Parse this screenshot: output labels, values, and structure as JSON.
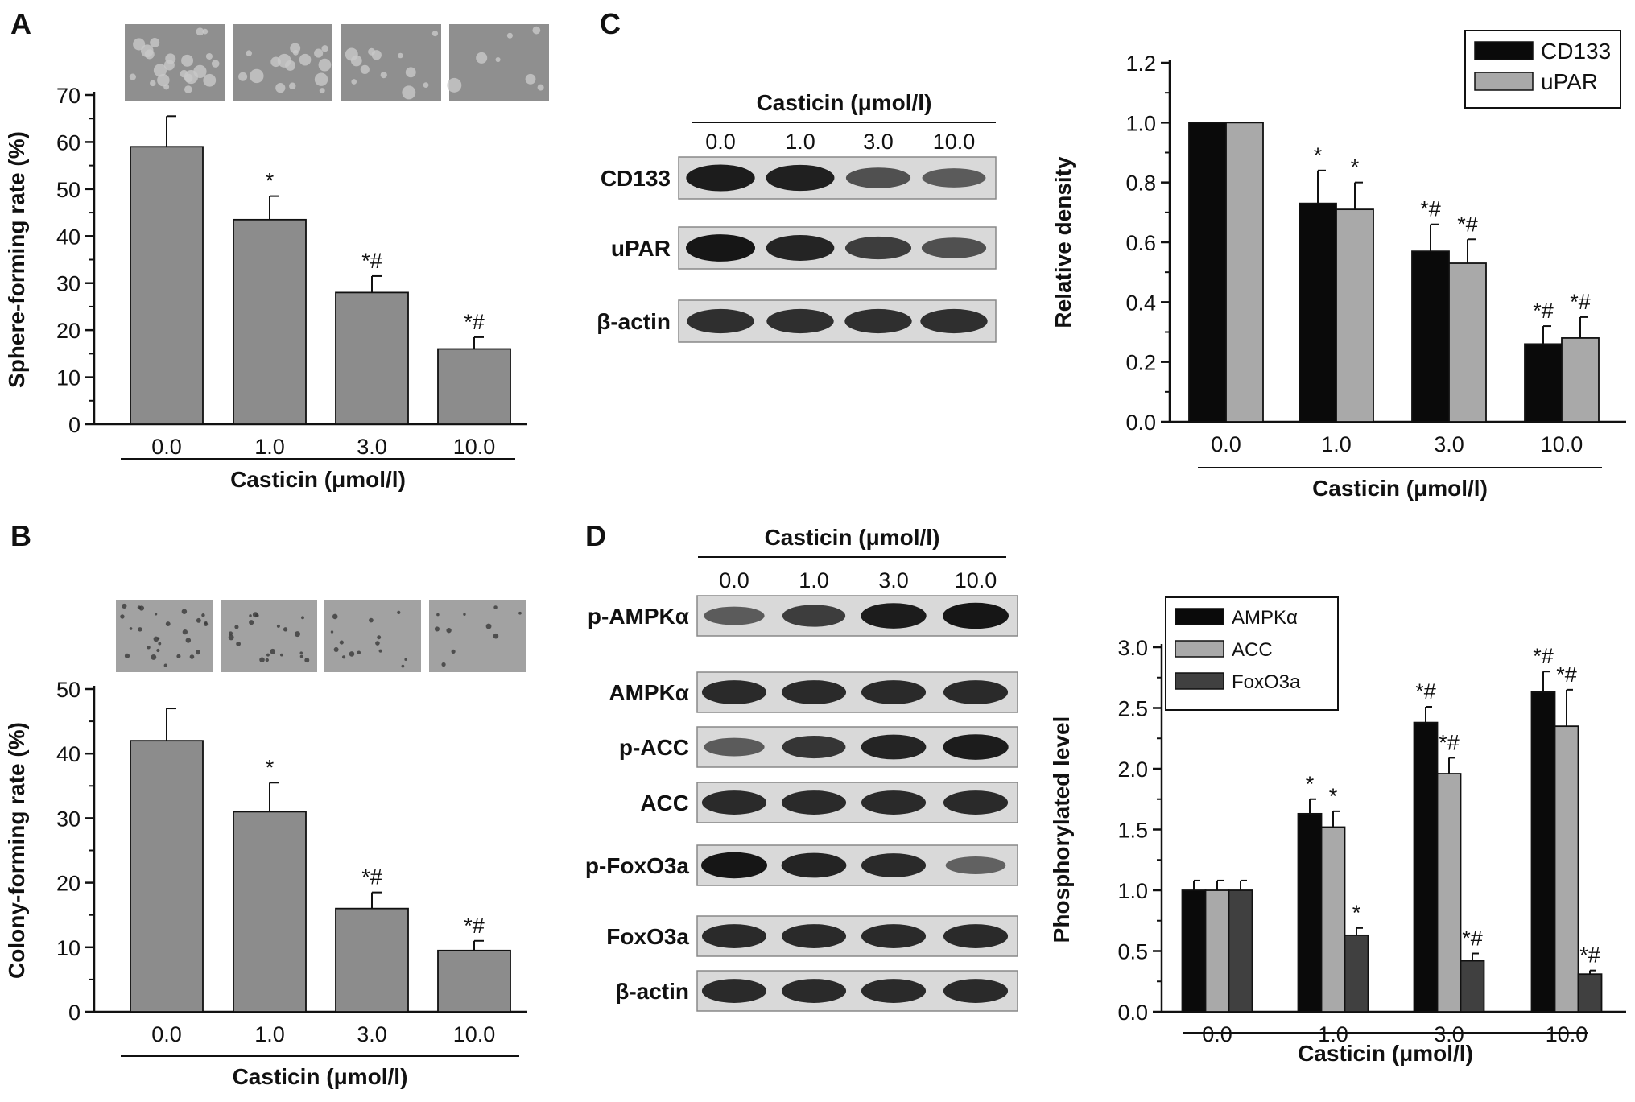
{
  "panel_letters": {
    "A": "A",
    "B": "B",
    "C": "C",
    "D": "D"
  },
  "colors": {
    "bar_single": "#8c8c8c",
    "bar_black": "#0a0a0a",
    "bar_light": "#a9a9a9",
    "bar_dark": "#404040",
    "blot_bg": "#d9d9d9",
    "band": "#161616",
    "micrograph_sphere": "#8f8f8f",
    "micrograph_colony": "#a2a2a2"
  },
  "chart_data": [
    {
      "panel": "A",
      "type": "bar",
      "categories": [
        "0.0",
        "1.0",
        "3.0",
        "10.0"
      ],
      "series": [
        {
          "values": [
            59,
            43.5,
            28,
            16
          ]
        }
      ],
      "errors": [
        6.5,
        5,
        3.5,
        2.5
      ],
      "annotations": [
        "",
        "*",
        "*#",
        "*#"
      ],
      "ylabel": "Sphere-forming rate (%)",
      "xlabel": "Casticin  (μmol/l)",
      "ylim": [
        0,
        70
      ],
      "yticks": [
        "0",
        "10",
        "20",
        "30",
        "40",
        "50",
        "60",
        "70"
      ]
    },
    {
      "panel": "B",
      "type": "bar",
      "categories": [
        "0.0",
        "1.0",
        "3.0",
        "10.0"
      ],
      "series": [
        {
          "values": [
            42,
            31,
            16,
            9.5
          ]
        }
      ],
      "errors": [
        5,
        4.5,
        2.5,
        1.5
      ],
      "annotations": [
        "",
        "*",
        "*#",
        "*#"
      ],
      "ylabel": "Colony-forming rate (%)",
      "xlabel": "Casticin  (μmol/l)",
      "ylim": [
        0,
        50
      ],
      "yticks": [
        "0",
        "10",
        "20",
        "30",
        "40",
        "50"
      ]
    },
    {
      "panel": "C",
      "type": "bar",
      "categories": [
        "0.0",
        "1.0",
        "3.0",
        "10.0"
      ],
      "series": [
        {
          "name": "CD133",
          "values": [
            1.0,
            0.73,
            0.57,
            0.26
          ],
          "errors": [
            0,
            0.11,
            0.09,
            0.06
          ],
          "annotations": [
            "",
            "*",
            "*#",
            "*#"
          ]
        },
        {
          "name": "uPAR",
          "values": [
            1.0,
            0.71,
            0.53,
            0.28
          ],
          "errors": [
            0,
            0.09,
            0.08,
            0.07
          ],
          "annotations": [
            "",
            "*",
            "*#",
            "*#"
          ]
        }
      ],
      "ylabel": "Relative density",
      "xlabel": "Casticin  (μmol/l)",
      "ylim": [
        0,
        1.2
      ],
      "yticks": [
        "0.0",
        "0.2",
        "0.4",
        "0.6",
        "0.8",
        "1.0",
        "1.2"
      ],
      "legend": "top-right"
    },
    {
      "panel": "D",
      "type": "bar",
      "categories": [
        "0.0",
        "1.0",
        "3.0",
        "10.0"
      ],
      "series": [
        {
          "name": "AMPKα",
          "values": [
            1.0,
            1.63,
            2.38,
            2.63
          ],
          "errors": [
            0.08,
            0.12,
            0.13,
            0.17
          ],
          "annotations": [
            "",
            "*",
            "*#",
            "*#"
          ]
        },
        {
          "name": "ACC",
          "values": [
            1.0,
            1.52,
            1.96,
            2.35
          ],
          "errors": [
            0.08,
            0.13,
            0.13,
            0.3
          ],
          "annotations": [
            "",
            "*",
            "*#",
            "*#"
          ]
        },
        {
          "name": "FoxO3a",
          "values": [
            1.0,
            0.63,
            0.42,
            0.31
          ],
          "errors": [
            0.08,
            0.06,
            0.06,
            0.03
          ],
          "annotations": [
            "",
            "*",
            "*#",
            "*#"
          ]
        }
      ],
      "ylabel": "Phosphorylated level",
      "xlabel": "Casticin  (μmol/l)",
      "ylim": [
        0,
        3.0
      ],
      "yticks": [
        "0.0",
        "0.5",
        "1.0",
        "1.5",
        "2.0",
        "2.5",
        "3.0"
      ],
      "legend": "top-left"
    }
  ],
  "blots": {
    "C": {
      "header": "Casticin (μmol/l)",
      "lanes": [
        "0.0",
        "1.0",
        "3.0",
        "10.0"
      ],
      "rows": [
        {
          "label": "CD133",
          "intensity": [
            0.95,
            0.92,
            0.55,
            0.45
          ]
        },
        {
          "label": "uPAR",
          "intensity": [
            1.0,
            0.9,
            0.7,
            0.55
          ]
        },
        {
          "label": "β-actin",
          "intensity": [
            0.8,
            0.8,
            0.8,
            0.8
          ]
        }
      ]
    },
    "D": {
      "header": "Casticin  (μmol/l)",
      "lanes": [
        "0.0",
        "1.0",
        "3.0",
        "10.0"
      ],
      "rows": [
        {
          "label": "p-AMPKα",
          "intensity": [
            0.45,
            0.7,
            0.95,
            1.0
          ]
        },
        {
          "label": "AMPKα",
          "intensity": [
            0.85,
            0.85,
            0.85,
            0.85
          ]
        },
        {
          "label": "p-ACC",
          "intensity": [
            0.45,
            0.75,
            0.9,
            0.95
          ]
        },
        {
          "label": "ACC",
          "intensity": [
            0.85,
            0.85,
            0.85,
            0.85
          ]
        },
        {
          "label": "p-FoxO3a",
          "intensity": [
            1.0,
            0.9,
            0.85,
            0.4
          ]
        },
        {
          "label": "FoxO3a",
          "intensity": [
            0.85,
            0.85,
            0.85,
            0.85
          ]
        },
        {
          "label": "β-actin",
          "intensity": [
            0.85,
            0.85,
            0.85,
            0.85
          ]
        }
      ]
    }
  }
}
